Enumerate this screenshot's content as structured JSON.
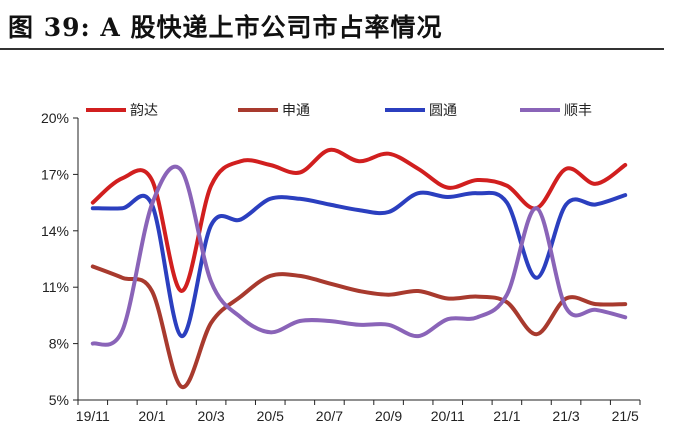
{
  "figure": {
    "title": "图  39:  A 股快递上市公司市占率情况"
  },
  "chart_data": {
    "type": "line",
    "xlabel": "",
    "ylabel": "",
    "x": [
      "19/11",
      "19/12",
      "20/1",
      "20/2",
      "20/3",
      "20/4",
      "20/5",
      "20/6",
      "20/7",
      "20/8",
      "20/9",
      "20/10",
      "20/11",
      "20/12",
      "21/1",
      "21/2",
      "21/3",
      "21/4",
      "21/5"
    ],
    "x_tick_labels": [
      "19/11",
      "20/1",
      "20/3",
      "20/5",
      "20/7",
      "20/9",
      "20/11",
      "21/1",
      "21/3",
      "21/5"
    ],
    "y_tick_labels": [
      "5%",
      "8%",
      "11%",
      "14%",
      "17%",
      "20%"
    ],
    "ylim": [
      5,
      20
    ],
    "unit": "%",
    "grid": false,
    "legend_position": "top",
    "series": [
      {
        "name": "韵达",
        "color": "#d11f1f",
        "values": [
          15.5,
          16.8,
          16.7,
          10.8,
          16.4,
          17.7,
          17.5,
          17.1,
          18.3,
          17.7,
          18.1,
          17.3,
          16.3,
          16.7,
          16.4,
          15.2,
          17.3,
          16.5,
          17.5
        ]
      },
      {
        "name": "申通",
        "color": "#a83a2e",
        "values": [
          12.1,
          11.5,
          10.8,
          5.7,
          9.1,
          10.5,
          11.6,
          11.6,
          11.2,
          10.8,
          10.6,
          10.8,
          10.4,
          10.5,
          10.2,
          8.5,
          10.4,
          10.1,
          10.1
        ]
      },
      {
        "name": "圆通",
        "color": "#2b3fbf",
        "values": [
          15.2,
          15.2,
          15.4,
          8.4,
          14.3,
          14.6,
          15.7,
          15.7,
          15.4,
          15.1,
          15.0,
          16.0,
          15.8,
          16.0,
          15.5,
          11.5,
          15.4,
          15.4,
          15.9
        ]
      },
      {
        "name": "顺丰",
        "color": "#8a64b8",
        "values": [
          8.0,
          8.7,
          15.4,
          17.2,
          11.3,
          9.4,
          8.6,
          9.2,
          9.2,
          9.0,
          9.0,
          8.4,
          9.3,
          9.4,
          10.6,
          15.2,
          9.9,
          9.8,
          9.4
        ]
      }
    ]
  }
}
